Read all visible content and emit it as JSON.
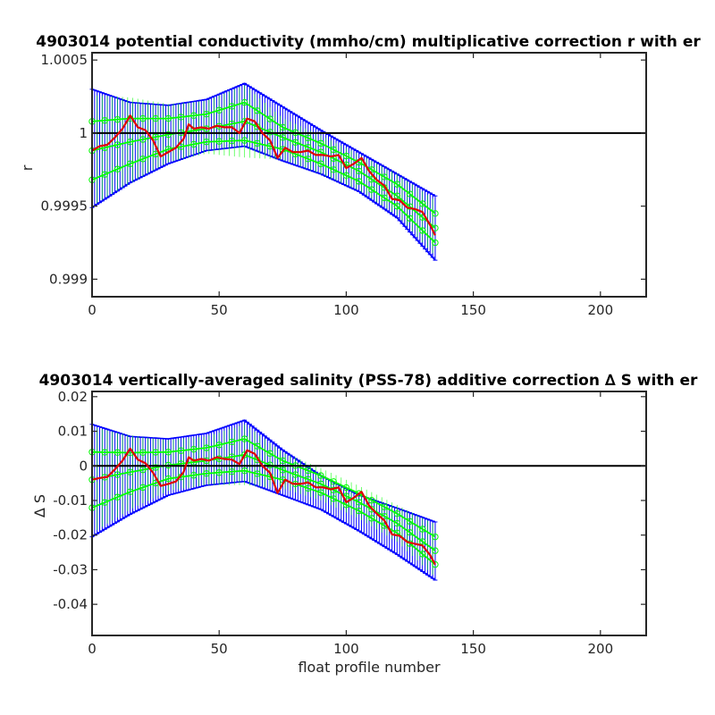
{
  "chart_data": [
    {
      "type": "line",
      "title": "4903014 potential conductivity (mmho/cm) multiplicative correction r with er",
      "xlabel": "",
      "ylabel": "r",
      "xlim": [
        0,
        218
      ],
      "ylim": [
        0.99888,
        1.00055
      ],
      "xticks": [
        0,
        50,
        100,
        150,
        200
      ],
      "xtick_labels": [
        "0",
        "50",
        "100",
        "150",
        "200"
      ],
      "yticks": [
        0.999,
        0.9995,
        1,
        1.0005
      ],
      "ytick_labels": [
        "0.999",
        "0.9995",
        "1",
        "1.0005"
      ],
      "reference_line": 1,
      "grid": false,
      "colors": {
        "error_bars": "#0000ff",
        "fit": "#00ff00",
        "measured": "#e00000",
        "reference": "#000000"
      },
      "series": [
        {
          "role": "error-envelope",
          "x": [
            0,
            15,
            30,
            45,
            60,
            75,
            90,
            105,
            120,
            135
          ],
          "upper": [
            1.0003,
            1.00021,
            1.00019,
            1.00023,
            1.00034,
            1.00018,
            1.00002,
            0.99987,
            0.99972,
            0.99957
          ],
          "lower": [
            0.99949,
            0.99966,
            0.99979,
            0.99988,
            0.99991,
            0.99981,
            0.99972,
            0.9996,
            0.99942,
            0.99913
          ]
        },
        {
          "role": "fit-mean",
          "x": [
            0,
            15,
            30,
            45,
            60,
            75,
            90,
            105,
            120,
            135
          ],
          "y": [
            0.99988,
            0.99994,
            0.99999,
            1.00003,
            1.00008,
            0.99997,
            0.99987,
            0.99974,
            0.99957,
            0.99935
          ]
        },
        {
          "role": "fit-band-1",
          "x": [
            0,
            15,
            30,
            45,
            60,
            75,
            90,
            105,
            120,
            135
          ],
          "y": [
            1.00008,
            1.0001,
            1.0001,
            1.00013,
            1.00021,
            1.00004,
            0.99993,
            0.9998,
            0.99965,
            0.99945
          ]
        },
        {
          "role": "fit-band-2",
          "x": [
            0,
            15,
            30,
            45,
            60,
            75,
            90,
            105,
            120,
            135
          ],
          "y": [
            0.99968,
            0.99979,
            0.99989,
            0.99994,
            0.99995,
            0.99989,
            0.99979,
            0.99967,
            0.9995,
            0.99925
          ]
        },
        {
          "role": "measured",
          "x": [
            0,
            3,
            6,
            9,
            12,
            15,
            18,
            21,
            24,
            27,
            30,
            33,
            36,
            38,
            40,
            43,
            46,
            49,
            52,
            55,
            58,
            61,
            64,
            67,
            70,
            73,
            76,
            79,
            82,
            85,
            88,
            91,
            94,
            97,
            100,
            103,
            106,
            109,
            112,
            115,
            118,
            121,
            124,
            127,
            130,
            133,
            135
          ],
          "y": [
            0.99988,
            0.99991,
            0.99992,
            0.99997,
            1.00003,
            1.00012,
            1.00004,
            1.00002,
            0.99995,
            0.99984,
            0.99987,
            0.9999,
            0.99996,
            1.00006,
            1.00003,
            1.00004,
            1.00003,
            1.00005,
            1.00004,
            1.00004,
            1.0,
            1.0001,
            1.00008,
            1.0,
            0.99995,
            0.99983,
            0.9999,
            0.99987,
            0.99987,
            0.99988,
            0.99985,
            0.99985,
            0.99984,
            0.99985,
            0.99976,
            0.99979,
            0.99983,
            0.99974,
            0.99968,
            0.99964,
            0.99955,
            0.99954,
            0.99949,
            0.99948,
            0.99946,
            0.99937,
            0.9993
          ]
        }
      ]
    },
    {
      "type": "line",
      "title": "4903014 vertically-averaged salinity (PSS-78) additive correction ∆ S with er",
      "xlabel": "float profile number",
      "ylabel": "∆ S",
      "xlim": [
        0,
        218
      ],
      "ylim": [
        -0.049,
        0.0215
      ],
      "xticks": [
        0,
        50,
        100,
        150,
        200
      ],
      "xtick_labels": [
        "0",
        "50",
        "100",
        "150",
        "200"
      ],
      "yticks": [
        -0.04,
        -0.03,
        -0.02,
        -0.01,
        0,
        0.01,
        0.02
      ],
      "ytick_labels": [
        "-0.04",
        "-0.03",
        "-0.02",
        "-0.01",
        "0",
        "0.01",
        "0.02"
      ],
      "reference_line": 0,
      "grid": false,
      "colors": {
        "error_bars": "#0000ff",
        "fit": "#00ff00",
        "measured": "#e00000",
        "reference": "#000000"
      },
      "series": [
        {
          "role": "error-envelope",
          "x": [
            0,
            15,
            30,
            45,
            60,
            75,
            90,
            105,
            120,
            135
          ],
          "upper": [
            0.012,
            0.0085,
            0.0078,
            0.0094,
            0.0132,
            0.0046,
            -0.0028,
            -0.0084,
            -0.0122,
            -0.0162
          ],
          "lower": [
            -0.0205,
            -0.014,
            -0.0085,
            -0.0056,
            -0.0045,
            -0.0085,
            -0.0126,
            -0.0188,
            -0.0256,
            -0.033
          ]
        },
        {
          "role": "fit-mean",
          "x": [
            0,
            15,
            30,
            45,
            60,
            75,
            90,
            105,
            120,
            135
          ],
          "y": [
            -0.004,
            -0.0018,
            0.0002,
            0.0015,
            0.0032,
            -0.0012,
            -0.0052,
            -0.0105,
            -0.0166,
            -0.0245
          ]
        },
        {
          "role": "fit-band-1",
          "x": [
            0,
            15,
            30,
            45,
            60,
            75,
            90,
            105,
            120,
            135
          ],
          "y": [
            0.004,
            0.0038,
            0.004,
            0.0052,
            0.0078,
            0.0015,
            -0.0028,
            -0.008,
            -0.0138,
            -0.0205
          ]
        },
        {
          "role": "fit-band-2",
          "x": [
            0,
            15,
            30,
            45,
            60,
            75,
            90,
            105,
            120,
            135
          ],
          "y": [
            -0.0121,
            -0.0075,
            -0.0037,
            -0.0022,
            -0.0014,
            -0.004,
            -0.0077,
            -0.013,
            -0.0194,
            -0.0285
          ]
        },
        {
          "role": "measured",
          "x": [
            0,
            3,
            6,
            9,
            12,
            15,
            18,
            21,
            24,
            27,
            30,
            33,
            36,
            38,
            40,
            43,
            46,
            49,
            52,
            55,
            58,
            61,
            64,
            67,
            70,
            73,
            76,
            79,
            82,
            85,
            88,
            91,
            94,
            97,
            100,
            103,
            106,
            109,
            112,
            115,
            118,
            121,
            124,
            127,
            130,
            133,
            135
          ],
          "y": [
            -0.004,
            -0.0035,
            -0.0032,
            -0.001,
            0.0015,
            0.005,
            0.0018,
            0.0008,
            -0.002,
            -0.0058,
            -0.0052,
            -0.0045,
            -0.0018,
            0.0025,
            0.0015,
            0.002,
            0.0015,
            0.0025,
            0.002,
            0.0018,
            0.0005,
            0.0045,
            0.0035,
            0.0,
            -0.002,
            -0.0078,
            -0.004,
            -0.0052,
            -0.0052,
            -0.0048,
            -0.0062,
            -0.0062,
            -0.0068,
            -0.0062,
            -0.0105,
            -0.0092,
            -0.0075,
            -0.0115,
            -0.0138,
            -0.0158,
            -0.0198,
            -0.0202,
            -0.022,
            -0.0225,
            -0.023,
            -0.0258,
            -0.0285
          ]
        }
      ]
    }
  ]
}
